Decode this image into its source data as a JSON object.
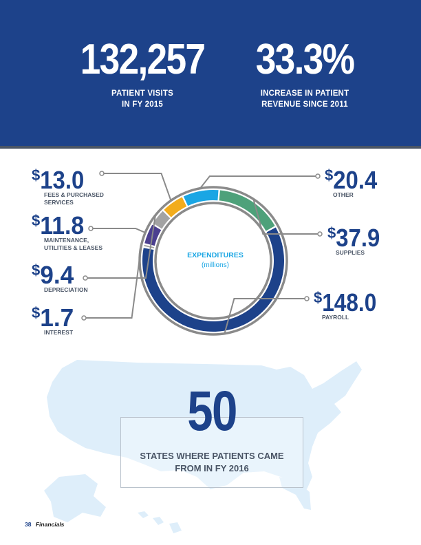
{
  "header": {
    "stats": [
      {
        "value": "132,257",
        "label_line1": "PATIENT VISITS",
        "label_line2": "IN FY 2015"
      },
      {
        "value": "33.3%",
        "label_line1": "INCREASE IN PATIENT",
        "label_line2": "REVENUE SINCE 2011"
      }
    ]
  },
  "chart_data": {
    "type": "pie",
    "title": "EXPENDITURES",
    "subtitle": "(millions)",
    "currency_symbol": "$",
    "legend": "none",
    "slices": [
      {
        "label": "PAYROLL",
        "label_lines": [
          "PAYROLL"
        ],
        "value": 148.0,
        "display": "148.0",
        "color": "#1d428a"
      },
      {
        "label": "INTEREST",
        "label_lines": [
          "INTEREST"
        ],
        "value": 1.7,
        "display": "1.7",
        "color": "#a3a3a3"
      },
      {
        "label": "MAINTENANCE, UTILITIES & LEASES",
        "label_lines": [
          "MAINTENANCE,",
          "UTILITIES & LEASES"
        ],
        "value": 11.8,
        "display": "11.8",
        "color": "#4b3f8f"
      },
      {
        "label": "DEPRECIATION",
        "label_lines": [
          "DEPRECIATION"
        ],
        "value": 9.4,
        "display": "9.4",
        "color": "#a3a3a3"
      },
      {
        "label": "FEES & PURCHASED SERVICES",
        "label_lines": [
          "FEES & PURCHASED",
          "SERVICES"
        ],
        "value": 13.0,
        "display": "13.0",
        "color": "#f2ac1c"
      },
      {
        "label": "OTHER",
        "label_lines": [
          "OTHER"
        ],
        "value": 20.4,
        "display": "20.4",
        "color": "#1aa6e4"
      },
      {
        "label": "SUPPLIES",
        "label_lines": [
          "SUPPLIES"
        ],
        "value": 37.9,
        "display": "37.9",
        "color": "#4ea17a"
      }
    ]
  },
  "states": {
    "value": "50",
    "label_line1": "STATES WHERE PATIENTS CAME",
    "label_line2": "FROM IN FY 2016"
  },
  "footer": {
    "page_number": "38",
    "section": "Financials"
  },
  "colors": {
    "brand_blue": "#1d428a",
    "accent_blue": "#1aa6e4",
    "map_fill": "#deeefa",
    "gray_text": "#4a5566"
  }
}
